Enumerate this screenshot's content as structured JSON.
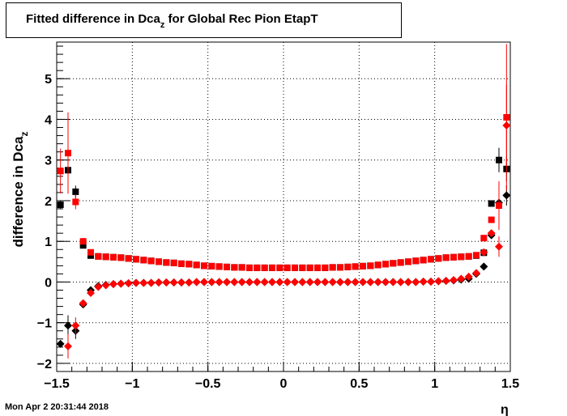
{
  "title": {
    "main": "Fitted difference in Dca",
    "sub": "z",
    "rest": " for Global Rec Pion EtapT"
  },
  "timestamp": "Mon Apr  2 20:31:44 2018",
  "chart_data": {
    "type": "scatter",
    "title": "Fitted difference in Dca_z for Global Rec Pion EtapT",
    "xlabel": "η",
    "ylabel": "difference in Dca_z",
    "xlim": [
      -1.5,
      1.5
    ],
    "ylim": [
      -2.2,
      5.9
    ],
    "grid": true,
    "xticks": [
      {
        "v": -1.5,
        "label": "−1.5"
      },
      {
        "v": -1,
        "label": "−1"
      },
      {
        "v": -0.5,
        "label": "−0.5"
      },
      {
        "v": 0,
        "label": "0"
      },
      {
        "v": 0.5,
        "label": "0.5"
      },
      {
        "v": 1,
        "label": "1"
      },
      {
        "v": 1.5,
        "label": "1.5"
      }
    ],
    "yticks": [
      {
        "v": -2,
        "label": "−2"
      },
      {
        "v": -1,
        "label": "−1"
      },
      {
        "v": 0,
        "label": "0"
      },
      {
        "v": 1,
        "label": "1"
      },
      {
        "v": 2,
        "label": "2"
      },
      {
        "v": 3,
        "label": "3"
      },
      {
        "v": 4,
        "label": "4"
      },
      {
        "v": 5,
        "label": "5"
      }
    ],
    "series": [
      {
        "marker": "square",
        "color": "#000000",
        "points": [
          {
            "x": -1.475,
            "y": 1.9,
            "err": 0.1
          },
          {
            "x": -1.425,
            "y": 2.75,
            "err": 0.15
          },
          {
            "x": -1.375,
            "y": 2.22,
            "err": 0.15
          },
          {
            "x": -1.325,
            "y": 0.9
          },
          {
            "x": -1.275,
            "y": 0.65
          },
          {
            "x": -1.225,
            "y": 0.63
          },
          {
            "x": -1.175,
            "y": 0.62
          },
          {
            "x": -1.125,
            "y": 0.61
          },
          {
            "x": -1.075,
            "y": 0.6
          },
          {
            "x": -1.025,
            "y": 0.58
          },
          {
            "x": -0.975,
            "y": 0.56
          },
          {
            "x": -0.925,
            "y": 0.54
          },
          {
            "x": -0.875,
            "y": 0.52
          },
          {
            "x": -0.825,
            "y": 0.5
          },
          {
            "x": -0.775,
            "y": 0.48
          },
          {
            "x": -0.725,
            "y": 0.47
          },
          {
            "x": -0.675,
            "y": 0.45
          },
          {
            "x": -0.625,
            "y": 0.44
          },
          {
            "x": -0.575,
            "y": 0.42
          },
          {
            "x": -0.525,
            "y": 0.4
          },
          {
            "x": -0.475,
            "y": 0.39
          },
          {
            "x": -0.425,
            "y": 0.38
          },
          {
            "x": -0.375,
            "y": 0.37
          },
          {
            "x": -0.325,
            "y": 0.36
          },
          {
            "x": -0.275,
            "y": 0.36
          },
          {
            "x": -0.225,
            "y": 0.35
          },
          {
            "x": -0.175,
            "y": 0.35
          },
          {
            "x": -0.125,
            "y": 0.35
          },
          {
            "x": -0.075,
            "y": 0.35
          },
          {
            "x": -0.025,
            "y": 0.35
          },
          {
            "x": 0.025,
            "y": 0.35
          },
          {
            "x": 0.075,
            "y": 0.35
          },
          {
            "x": 0.125,
            "y": 0.35
          },
          {
            "x": 0.175,
            "y": 0.35
          },
          {
            "x": 0.225,
            "y": 0.35
          },
          {
            "x": 0.275,
            "y": 0.35
          },
          {
            "x": 0.325,
            "y": 0.36
          },
          {
            "x": 0.375,
            "y": 0.36
          },
          {
            "x": 0.425,
            "y": 0.37
          },
          {
            "x": 0.475,
            "y": 0.38
          },
          {
            "x": 0.525,
            "y": 0.39
          },
          {
            "x": 0.575,
            "y": 0.4
          },
          {
            "x": 0.625,
            "y": 0.42
          },
          {
            "x": 0.675,
            "y": 0.44
          },
          {
            "x": 0.725,
            "y": 0.46
          },
          {
            "x": 0.775,
            "y": 0.48
          },
          {
            "x": 0.825,
            "y": 0.5
          },
          {
            "x": 0.875,
            "y": 0.52
          },
          {
            "x": 0.925,
            "y": 0.54
          },
          {
            "x": 0.975,
            "y": 0.56
          },
          {
            "x": 1.025,
            "y": 0.58
          },
          {
            "x": 1.075,
            "y": 0.6
          },
          {
            "x": 1.125,
            "y": 0.61
          },
          {
            "x": 1.175,
            "y": 0.62
          },
          {
            "x": 1.225,
            "y": 0.63
          },
          {
            "x": 1.275,
            "y": 0.65
          },
          {
            "x": 1.325,
            "y": 0.72
          },
          {
            "x": 1.375,
            "y": 1.93
          },
          {
            "x": 1.425,
            "y": 3.0,
            "err": 0.3
          },
          {
            "x": 1.475,
            "y": 2.78,
            "err": 0.3
          }
        ]
      },
      {
        "marker": "diamond",
        "color": "#000000",
        "points": [
          {
            "x": -1.475,
            "y": -1.52
          },
          {
            "x": -1.425,
            "y": -1.07,
            "err": 0.25
          },
          {
            "x": -1.375,
            "y": -1.2,
            "err": 0.2
          },
          {
            "x": -1.325,
            "y": -0.55
          },
          {
            "x": -1.275,
            "y": -0.2
          },
          {
            "x": -1.225,
            "y": -0.1
          },
          {
            "x": -1.175,
            "y": -0.07
          },
          {
            "x": -1.125,
            "y": -0.05
          },
          {
            "x": -1.075,
            "y": -0.04
          },
          {
            "x": -1.025,
            "y": -0.03
          },
          {
            "x": -0.975,
            "y": -0.02
          },
          {
            "x": -0.925,
            "y": -0.02
          },
          {
            "x": -0.875,
            "y": -0.02
          },
          {
            "x": -0.825,
            "y": -0.01
          },
          {
            "x": -0.775,
            "y": -0.01
          },
          {
            "x": -0.725,
            "y": -0.01
          },
          {
            "x": -0.675,
            "y": -0.01
          },
          {
            "x": -0.625,
            "y": -0.01
          },
          {
            "x": -0.575,
            "y": 0.0
          },
          {
            "x": -0.525,
            "y": 0.0
          },
          {
            "x": -0.475,
            "y": 0.0
          },
          {
            "x": -0.425,
            "y": 0.0
          },
          {
            "x": -0.375,
            "y": 0.0
          },
          {
            "x": -0.325,
            "y": 0.0
          },
          {
            "x": -0.275,
            "y": 0.0
          },
          {
            "x": -0.225,
            "y": 0.0
          },
          {
            "x": -0.175,
            "y": 0.0
          },
          {
            "x": -0.125,
            "y": 0.0
          },
          {
            "x": -0.075,
            "y": 0.0
          },
          {
            "x": -0.025,
            "y": 0.0
          },
          {
            "x": 0.025,
            "y": 0.0
          },
          {
            "x": 0.075,
            "y": 0.0
          },
          {
            "x": 0.125,
            "y": 0.0
          },
          {
            "x": 0.175,
            "y": 0.0
          },
          {
            "x": 0.225,
            "y": 0.0
          },
          {
            "x": 0.275,
            "y": 0.0
          },
          {
            "x": 0.325,
            "y": 0.0
          },
          {
            "x": 0.375,
            "y": 0.0
          },
          {
            "x": 0.425,
            "y": 0.0
          },
          {
            "x": 0.475,
            "y": 0.0
          },
          {
            "x": 0.525,
            "y": 0.0
          },
          {
            "x": 0.575,
            "y": 0.0
          },
          {
            "x": 0.625,
            "y": 0.0
          },
          {
            "x": 0.675,
            "y": 0.0
          },
          {
            "x": 0.725,
            "y": 0.0
          },
          {
            "x": 0.775,
            "y": 0.0
          },
          {
            "x": 0.825,
            "y": 0.0
          },
          {
            "x": 0.875,
            "y": 0.0
          },
          {
            "x": 0.925,
            "y": 0.01
          },
          {
            "x": 0.975,
            "y": 0.01
          },
          {
            "x": 1.025,
            "y": 0.02
          },
          {
            "x": 1.075,
            "y": 0.03
          },
          {
            "x": 1.125,
            "y": 0.04
          },
          {
            "x": 1.175,
            "y": 0.06
          },
          {
            "x": 1.225,
            "y": 0.08
          },
          {
            "x": 1.275,
            "y": 0.2
          },
          {
            "x": 1.325,
            "y": 0.38
          },
          {
            "x": 1.375,
            "y": 1.15
          },
          {
            "x": 1.425,
            "y": 1.95,
            "err": 0.2
          },
          {
            "x": 1.475,
            "y": 2.13,
            "err": 0.25
          }
        ]
      },
      {
        "marker": "square",
        "color": "#ff0000",
        "points": [
          {
            "x": -1.475,
            "y": 2.73,
            "err": 0.55
          },
          {
            "x": -1.425,
            "y": 3.17,
            "err": 1.0
          },
          {
            "x": -1.375,
            "y": 1.97,
            "err": 0.18
          },
          {
            "x": -1.325,
            "y": 1.0
          },
          {
            "x": -1.275,
            "y": 0.73
          },
          {
            "x": -1.225,
            "y": 0.63
          },
          {
            "x": -1.175,
            "y": 0.62
          },
          {
            "x": -1.125,
            "y": 0.61
          },
          {
            "x": -1.075,
            "y": 0.6
          },
          {
            "x": -1.025,
            "y": 0.58
          },
          {
            "x": -0.975,
            "y": 0.56
          },
          {
            "x": -0.925,
            "y": 0.54
          },
          {
            "x": -0.875,
            "y": 0.52
          },
          {
            "x": -0.825,
            "y": 0.5
          },
          {
            "x": -0.775,
            "y": 0.48
          },
          {
            "x": -0.725,
            "y": 0.47
          },
          {
            "x": -0.675,
            "y": 0.45
          },
          {
            "x": -0.625,
            "y": 0.44
          },
          {
            "x": -0.575,
            "y": 0.42
          },
          {
            "x": -0.525,
            "y": 0.4
          },
          {
            "x": -0.475,
            "y": 0.39
          },
          {
            "x": -0.425,
            "y": 0.38
          },
          {
            "x": -0.375,
            "y": 0.37
          },
          {
            "x": -0.325,
            "y": 0.36
          },
          {
            "x": -0.275,
            "y": 0.36
          },
          {
            "x": -0.225,
            "y": 0.35
          },
          {
            "x": -0.175,
            "y": 0.35
          },
          {
            "x": -0.125,
            "y": 0.35
          },
          {
            "x": -0.075,
            "y": 0.35
          },
          {
            "x": -0.025,
            "y": 0.35
          },
          {
            "x": 0.025,
            "y": 0.35
          },
          {
            "x": 0.075,
            "y": 0.35
          },
          {
            "x": 0.125,
            "y": 0.35
          },
          {
            "x": 0.175,
            "y": 0.35
          },
          {
            "x": 0.225,
            "y": 0.35
          },
          {
            "x": 0.275,
            "y": 0.35
          },
          {
            "x": 0.325,
            "y": 0.36
          },
          {
            "x": 0.375,
            "y": 0.36
          },
          {
            "x": 0.425,
            "y": 0.37
          },
          {
            "x": 0.475,
            "y": 0.38
          },
          {
            "x": 0.525,
            "y": 0.39
          },
          {
            "x": 0.575,
            "y": 0.4
          },
          {
            "x": 0.625,
            "y": 0.42
          },
          {
            "x": 0.675,
            "y": 0.44
          },
          {
            "x": 0.725,
            "y": 0.46
          },
          {
            "x": 0.775,
            "y": 0.48
          },
          {
            "x": 0.825,
            "y": 0.5
          },
          {
            "x": 0.875,
            "y": 0.52
          },
          {
            "x": 0.925,
            "y": 0.54
          },
          {
            "x": 0.975,
            "y": 0.56
          },
          {
            "x": 1.025,
            "y": 0.58
          },
          {
            "x": 1.075,
            "y": 0.6
          },
          {
            "x": 1.125,
            "y": 0.61
          },
          {
            "x": 1.175,
            "y": 0.62
          },
          {
            "x": 1.225,
            "y": 0.63
          },
          {
            "x": 1.275,
            "y": 0.66
          },
          {
            "x": 1.325,
            "y": 1.08
          },
          {
            "x": 1.375,
            "y": 1.53
          },
          {
            "x": 1.425,
            "y": 1.88,
            "err": 0.6
          },
          {
            "x": 1.475,
            "y": 4.05,
            "err": 1.8
          }
        ]
      },
      {
        "marker": "diamond",
        "color": "#ff0000",
        "points": [
          {
            "x": -1.425,
            "y": -1.58,
            "err": 0.3
          },
          {
            "x": -1.375,
            "y": -1.07,
            "err": 0.2
          },
          {
            "x": -1.325,
            "y": -0.52
          },
          {
            "x": -1.275,
            "y": -0.27
          },
          {
            "x": -1.225,
            "y": -0.12
          },
          {
            "x": -1.175,
            "y": -0.08
          },
          {
            "x": -1.125,
            "y": -0.05
          },
          {
            "x": -1.075,
            "y": -0.04
          },
          {
            "x": -1.025,
            "y": -0.03
          },
          {
            "x": -0.975,
            "y": -0.02
          },
          {
            "x": -0.925,
            "y": -0.02
          },
          {
            "x": -0.875,
            "y": -0.02
          },
          {
            "x": -0.825,
            "y": -0.01
          },
          {
            "x": -0.775,
            "y": -0.01
          },
          {
            "x": -0.725,
            "y": -0.01
          },
          {
            "x": -0.675,
            "y": -0.01
          },
          {
            "x": -0.625,
            "y": -0.01
          },
          {
            "x": -0.575,
            "y": 0.0
          },
          {
            "x": -0.525,
            "y": 0.0
          },
          {
            "x": -0.475,
            "y": 0.0
          },
          {
            "x": -0.425,
            "y": 0.0
          },
          {
            "x": -0.375,
            "y": 0.0
          },
          {
            "x": -0.325,
            "y": 0.0
          },
          {
            "x": -0.275,
            "y": 0.0
          },
          {
            "x": -0.225,
            "y": 0.0
          },
          {
            "x": -0.175,
            "y": 0.0
          },
          {
            "x": -0.125,
            "y": 0.0
          },
          {
            "x": -0.075,
            "y": 0.0
          },
          {
            "x": -0.025,
            "y": 0.0
          },
          {
            "x": 0.025,
            "y": 0.0
          },
          {
            "x": 0.075,
            "y": 0.0
          },
          {
            "x": 0.125,
            "y": 0.0
          },
          {
            "x": 0.175,
            "y": 0.0
          },
          {
            "x": 0.225,
            "y": 0.0
          },
          {
            "x": 0.275,
            "y": 0.0
          },
          {
            "x": 0.325,
            "y": 0.0
          },
          {
            "x": 0.375,
            "y": 0.0
          },
          {
            "x": 0.425,
            "y": 0.0
          },
          {
            "x": 0.475,
            "y": 0.0
          },
          {
            "x": 0.525,
            "y": 0.0
          },
          {
            "x": 0.575,
            "y": 0.0
          },
          {
            "x": 0.625,
            "y": 0.0
          },
          {
            "x": 0.675,
            "y": 0.0
          },
          {
            "x": 0.725,
            "y": 0.0
          },
          {
            "x": 0.775,
            "y": 0.0
          },
          {
            "x": 0.825,
            "y": 0.0
          },
          {
            "x": 0.875,
            "y": 0.0
          },
          {
            "x": 0.925,
            "y": 0.01
          },
          {
            "x": 0.975,
            "y": 0.01
          },
          {
            "x": 1.025,
            "y": 0.02
          },
          {
            "x": 1.075,
            "y": 0.03
          },
          {
            "x": 1.125,
            "y": 0.05
          },
          {
            "x": 1.175,
            "y": 0.08
          },
          {
            "x": 1.225,
            "y": 0.13
          },
          {
            "x": 1.275,
            "y": 0.22
          },
          {
            "x": 1.325,
            "y": 0.73
          },
          {
            "x": 1.375,
            "y": 1.2
          },
          {
            "x": 1.425,
            "y": 0.87,
            "err": 0.25
          },
          {
            "x": 1.475,
            "y": 3.85,
            "err": 1.0
          }
        ]
      }
    ]
  }
}
